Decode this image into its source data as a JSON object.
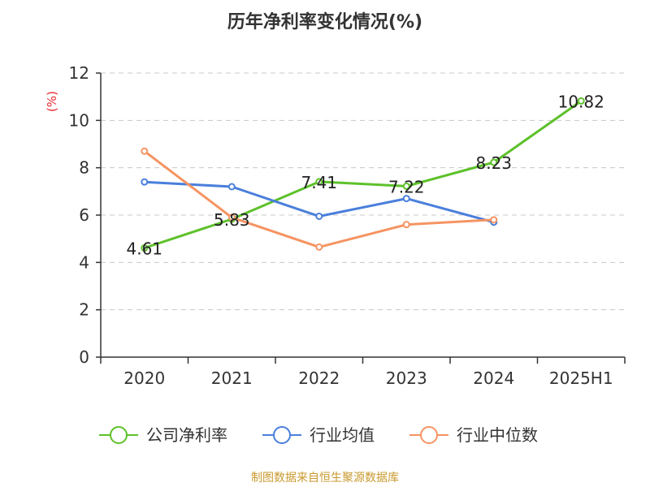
{
  "chart_data": {
    "type": "line",
    "title": "历年净利率变化情况(%)",
    "xlabel": "",
    "ylabel": "(%)",
    "categories": [
      "2020",
      "2021",
      "2022",
      "2023",
      "2024",
      "2025H1"
    ],
    "ylim": [
      0,
      12
    ],
    "yticks": [
      0,
      2,
      4,
      6,
      8,
      10,
      12
    ],
    "grid": true,
    "legend_position": "bottom",
    "series": [
      {
        "name": "公司净利率",
        "color": "#5dc12a",
        "values": [
          4.61,
          5.83,
          7.41,
          7.22,
          8.23,
          10.82
        ],
        "labels": [
          "4.61",
          "5.83",
          "7.41",
          "7.22",
          "8.23",
          "10.82"
        ]
      },
      {
        "name": "行业均值",
        "color": "#4a7fdc",
        "values": [
          7.4,
          7.2,
          5.95,
          6.7,
          5.7,
          null
        ],
        "labels": []
      },
      {
        "name": "行业中位数",
        "color": "#f59462",
        "values": [
          8.7,
          5.9,
          4.65,
          5.6,
          5.8,
          null
        ],
        "labels": []
      }
    ],
    "source": "制图数据来自恒生聚源数据库"
  }
}
